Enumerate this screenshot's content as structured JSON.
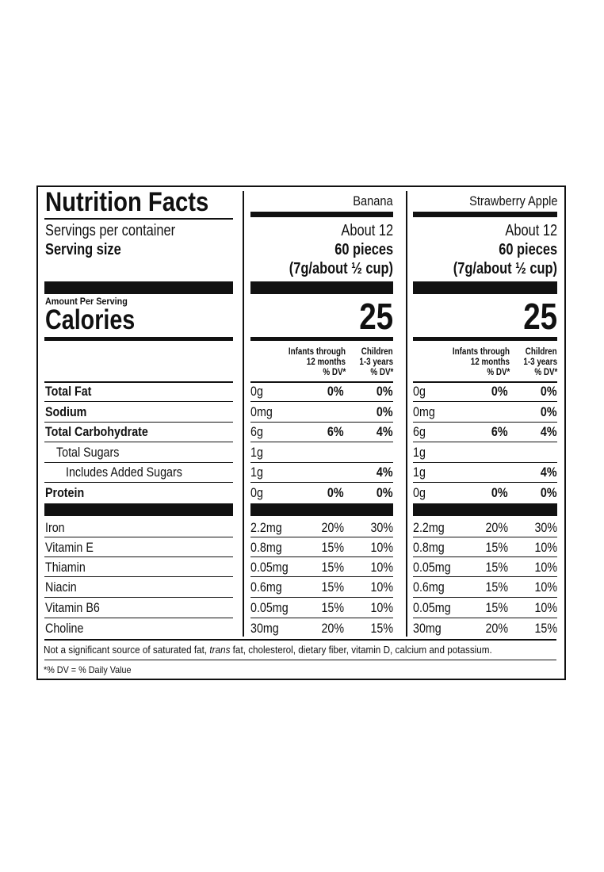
{
  "title": "Nutrition Facts",
  "servings_label": "Servings per container",
  "serving_size_label": "Serving size",
  "amount_per_serving": "Amount Per Serving",
  "calories_label": "Calories",
  "dv_header": {
    "infants": [
      "Infants through",
      "12 months",
      "% DV*"
    ],
    "children": [
      "Children",
      "1-3 years",
      "% DV*"
    ]
  },
  "products": [
    {
      "name": "Banana",
      "servings": "About 12",
      "pieces": "60 pieces",
      "size": "(7g/about ½ cup)",
      "calories": "25",
      "nutrients": [
        {
          "amount": "0g",
          "infant": "0%",
          "child": "0%"
        },
        {
          "amount": "0mg",
          "infant": "",
          "child": "0%"
        },
        {
          "amount": "6g",
          "infant": "6%",
          "child": "4%"
        },
        {
          "amount": "1g",
          "infant": "",
          "child": ""
        },
        {
          "amount": "1g",
          "infant": "",
          "child": "4%"
        },
        {
          "amount": "0g",
          "infant": "0%",
          "child": "0%"
        }
      ],
      "vitamins": [
        {
          "amount": "2.2mg",
          "infant": "20%",
          "child": "30%"
        },
        {
          "amount": "0.8mg",
          "infant": "15%",
          "child": "10%"
        },
        {
          "amount": "0.05mg",
          "infant": "15%",
          "child": "10%"
        },
        {
          "amount": "0.6mg",
          "infant": "15%",
          "child": "10%"
        },
        {
          "amount": "0.05mg",
          "infant": "15%",
          "child": "10%"
        },
        {
          "amount": "30mg",
          "infant": "20%",
          "child": "15%"
        }
      ]
    },
    {
      "name": "Strawberry Apple",
      "servings": "About 12",
      "pieces": "60 pieces",
      "size": "(7g/about ½ cup)",
      "calories": "25",
      "nutrients": [
        {
          "amount": "0g",
          "infant": "0%",
          "child": "0%"
        },
        {
          "amount": "0mg",
          "infant": "",
          "child": "0%"
        },
        {
          "amount": "6g",
          "infant": "6%",
          "child": "4%"
        },
        {
          "amount": "1g",
          "infant": "",
          "child": ""
        },
        {
          "amount": "1g",
          "infant": "",
          "child": "4%"
        },
        {
          "amount": "0g",
          "infant": "0%",
          "child": "0%"
        }
      ],
      "vitamins": [
        {
          "amount": "2.2mg",
          "infant": "20%",
          "child": "30%"
        },
        {
          "amount": "0.8mg",
          "infant": "15%",
          "child": "10%"
        },
        {
          "amount": "0.05mg",
          "infant": "15%",
          "child": "10%"
        },
        {
          "amount": "0.6mg",
          "infant": "15%",
          "child": "10%"
        },
        {
          "amount": "0.05mg",
          "infant": "15%",
          "child": "10%"
        },
        {
          "amount": "30mg",
          "infant": "20%",
          "child": "15%"
        }
      ]
    }
  ],
  "nutrient_labels": [
    {
      "label": "Total Fat",
      "bold": true,
      "indent": 0
    },
    {
      "label": "Sodium",
      "bold": true,
      "indent": 0
    },
    {
      "label": "Total Carbohydrate",
      "bold": true,
      "indent": 0
    },
    {
      "label": "Total Sugars",
      "bold": false,
      "indent": 1
    },
    {
      "label": "Includes Added Sugars",
      "bold": false,
      "indent": 2
    },
    {
      "label": "Protein",
      "bold": true,
      "indent": 0
    }
  ],
  "vitamin_labels": [
    "Iron",
    "Vitamin E",
    "Thiamin",
    "Niacin",
    "Vitamin B6",
    "Choline"
  ],
  "footnote_parts": [
    "Not a significant source of saturated fat, ",
    "trans",
    " fat, cholesterol, dietary fiber, vitamin D, calcium and potassium."
  ],
  "dv_note": "*% DV = % Daily Value"
}
